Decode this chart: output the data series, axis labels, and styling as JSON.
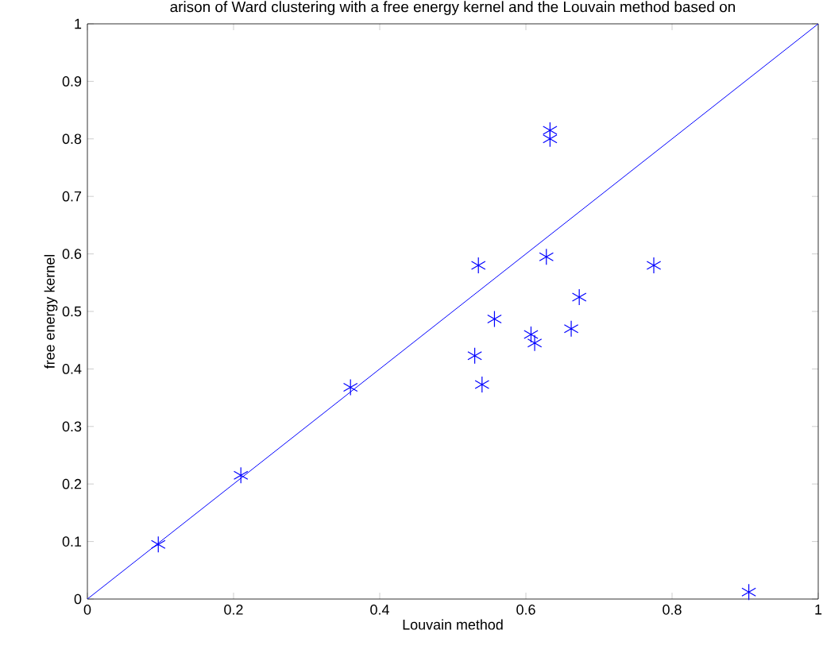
{
  "chart_data": {
    "type": "scatter",
    "title": "arison of Ward clustering with a free energy kernel and the Louvain method based on",
    "xlabel": "Louvain method",
    "ylabel": "free energy kernel",
    "xlim": [
      0,
      1
    ],
    "ylim": [
      0,
      1
    ],
    "xticks": [
      0,
      0.2,
      0.4,
      0.6,
      0.8,
      1
    ],
    "yticks": [
      0,
      0.1,
      0.2,
      0.3,
      0.4,
      0.5,
      0.6,
      0.7,
      0.8,
      0.9,
      1
    ],
    "grid": false,
    "series": [
      {
        "marker": "cross",
        "color": "#0000ff",
        "x": [
          0.097,
          0.21,
          0.36,
          0.53,
          0.54,
          0.535,
          0.557,
          0.607,
          0.612,
          0.628,
          0.633,
          0.633,
          0.662,
          0.673,
          0.775,
          0.905
        ],
        "values": [
          0.095,
          0.215,
          0.368,
          0.423,
          0.373,
          0.58,
          0.487,
          0.46,
          0.445,
          0.595,
          0.815,
          0.8,
          0.47,
          0.525,
          0.58,
          0.012
        ]
      },
      {
        "type": "line",
        "marker": "none",
        "color": "#0000ff",
        "x": [
          0,
          1
        ],
        "values": [
          0,
          1
        ]
      }
    ]
  }
}
